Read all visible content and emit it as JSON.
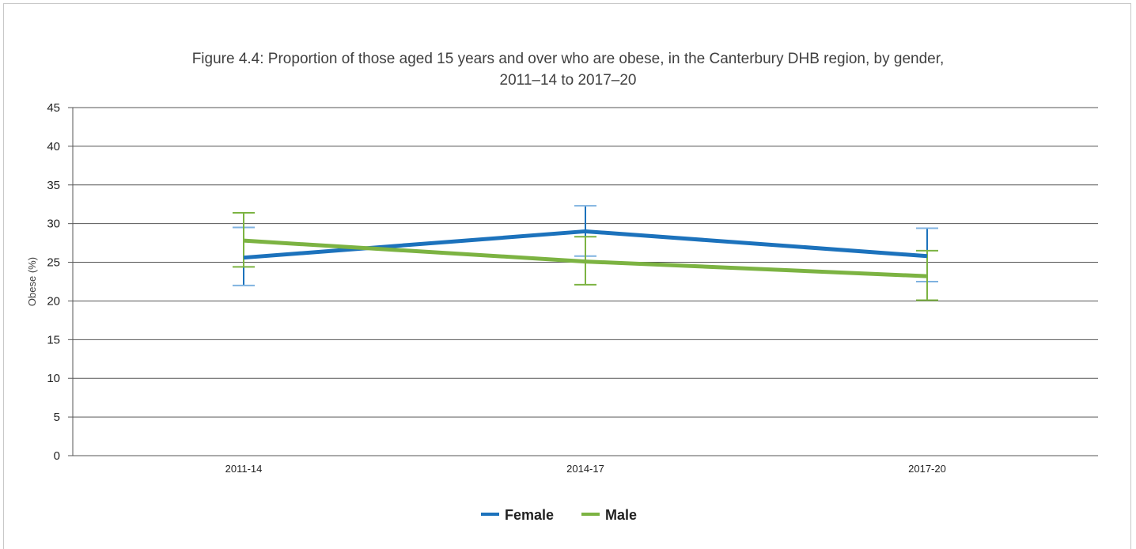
{
  "chart_data": {
    "type": "line",
    "title": "Figure 4.4: Proportion of those aged 15 years and over who are obese, in the Canterbury DHB region, by gender,",
    "subtitle": "2011–14 to 2017–20",
    "xlabel": "",
    "ylabel": "Obese (%)",
    "categories": [
      "2011-14",
      "2014-17",
      "2017-20"
    ],
    "ylim": [
      0,
      45
    ],
    "yticks": [
      0,
      5,
      10,
      15,
      20,
      25,
      30,
      35,
      40,
      45
    ],
    "grid": true,
    "legend_position": "bottom",
    "series": [
      {
        "name": "Female",
        "color": "#1c72bc",
        "error_color": "#1c72bc",
        "error_cap_color": "#7fb2e0",
        "values": [
          25.6,
          29.0,
          25.8
        ],
        "lower": [
          22.0,
          25.8,
          22.5
        ],
        "upper": [
          29.5,
          32.3,
          29.4
        ]
      },
      {
        "name": "Male",
        "color": "#7cb342",
        "error_color": "#7cb342",
        "error_cap_color": "#7cb342",
        "values": [
          27.8,
          25.1,
          23.2
        ],
        "lower": [
          24.4,
          22.1,
          20.1
        ],
        "upper": [
          31.4,
          28.3,
          26.5
        ]
      }
    ]
  }
}
